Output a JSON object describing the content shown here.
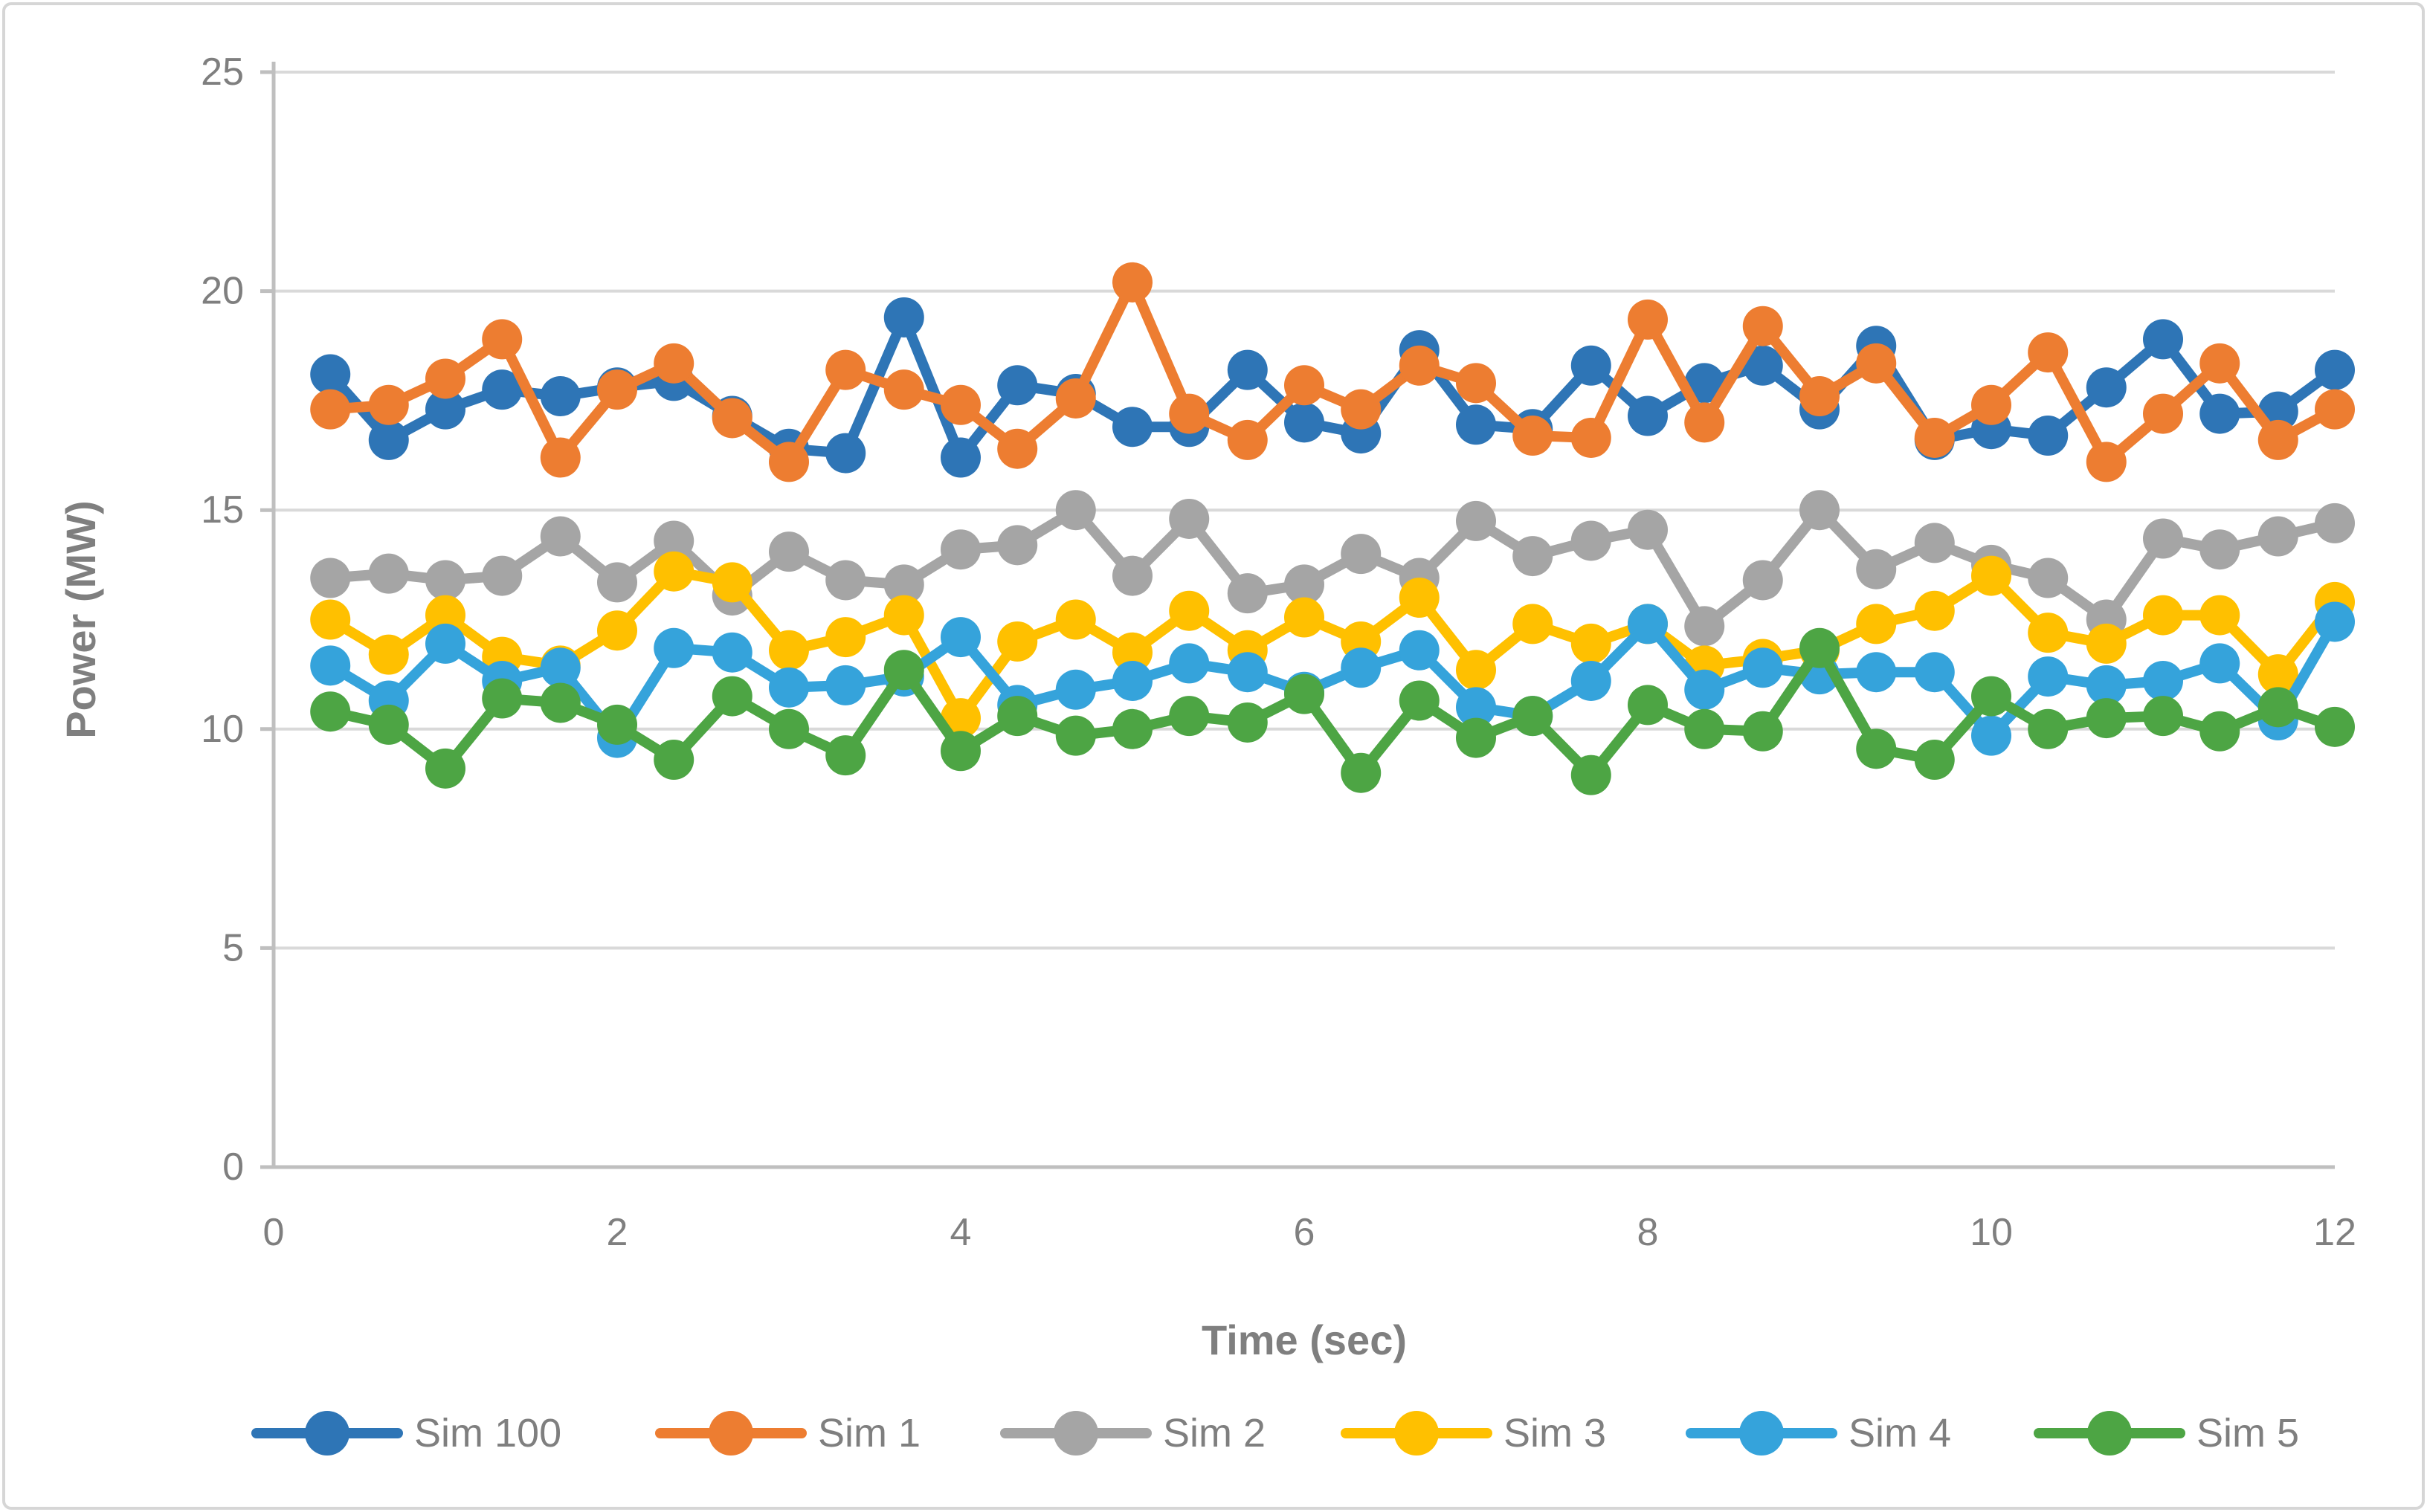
{
  "figure": {
    "border_color": "#d6d6d6",
    "background": "#ffffff",
    "text_color": "#7f7f7f",
    "grid_color": "#d9d9d9",
    "axis_color": "#bfbfbf"
  },
  "chart_data": {
    "type": "line",
    "title": "",
    "xlabel": "Time (sec)",
    "ylabel": "Power (MW)",
    "xlim": [
      0,
      12
    ],
    "ylim": [
      0,
      25
    ],
    "xticks": [
      0,
      2,
      4,
      6,
      8,
      10,
      12
    ],
    "yticks": [
      0,
      5,
      10,
      15,
      20,
      25
    ],
    "grid": "horizontal",
    "legend_position": "bottom",
    "marker": "circle",
    "x": [
      0.33,
      0.67,
      1,
      1.33,
      1.67,
      2,
      2.33,
      2.67,
      3,
      3.33,
      3.67,
      4,
      4.33,
      4.67,
      5,
      5.33,
      5.67,
      6,
      6.33,
      6.67,
      7,
      7.33,
      7.67,
      8,
      8.33,
      8.67,
      9,
      9.33,
      9.67,
      10,
      10.33,
      10.67,
      11,
      11.33,
      11.67,
      12
    ],
    "series": [
      {
        "name": "Sim 100",
        "color": "#2e75b6",
        "values": [
          18.1,
          16.6,
          17.3,
          17.75,
          17.6,
          17.8,
          17.95,
          17.15,
          16.4,
          16.3,
          19.4,
          16.2,
          17.85,
          17.65,
          16.9,
          16.9,
          18.2,
          17.0,
          16.75,
          18.65,
          16.95,
          16.85,
          18.3,
          17.15,
          17.9,
          18.3,
          17.3,
          18.75,
          16.6,
          16.85,
          16.7,
          17.8,
          18.9,
          17.2,
          17.25,
          18.2
        ]
      },
      {
        "name": "Sim 1",
        "color": "#ed7d31",
        "values": [
          17.3,
          17.4,
          18.0,
          18.9,
          16.2,
          17.75,
          18.35,
          17.1,
          16.1,
          18.2,
          17.75,
          17.4,
          16.4,
          17.55,
          20.2,
          17.2,
          16.6,
          17.85,
          17.3,
          18.3,
          17.9,
          16.7,
          16.65,
          19.35,
          17.0,
          19.2,
          17.6,
          18.35,
          16.65,
          17.4,
          18.6,
          16.1,
          17.2,
          18.35,
          16.6,
          17.3
        ]
      },
      {
        "name": "Sim 2",
        "color": "#a5a5a5",
        "values": [
          13.45,
          13.55,
          13.4,
          13.5,
          14.4,
          13.35,
          14.3,
          13.05,
          14.05,
          13.4,
          13.3,
          14.1,
          14.2,
          15.0,
          13.5,
          14.8,
          13.1,
          13.3,
          14.0,
          13.45,
          14.75,
          13.95,
          14.3,
          14.55,
          12.35,
          13.4,
          15.0,
          13.65,
          14.25,
          13.75,
          13.45,
          12.5,
          14.35,
          14.1,
          14.4,
          14.7
        ]
      },
      {
        "name": "Sim 3",
        "color": "#ffc000",
        "values": [
          12.5,
          11.7,
          12.6,
          11.65,
          11.45,
          12.25,
          13.6,
          13.35,
          11.8,
          12.1,
          12.6,
          10.25,
          12.0,
          12.5,
          11.75,
          12.7,
          11.8,
          12.55,
          12.0,
          13.0,
          11.35,
          12.4,
          11.95,
          12.4,
          11.45,
          11.6,
          11.8,
          12.4,
          12.7,
          13.5,
          12.2,
          11.95,
          12.6,
          12.6,
          11.25,
          12.9
        ]
      },
      {
        "name": "Sim 4",
        "color": "#35a3db",
        "values": [
          11.45,
          10.65,
          11.95,
          11.1,
          11.4,
          9.8,
          11.85,
          11.75,
          10.95,
          11.0,
          11.2,
          12.1,
          10.55,
          10.9,
          11.1,
          11.5,
          11.3,
          10.85,
          11.4,
          11.8,
          10.5,
          10.3,
          11.1,
          12.4,
          10.9,
          11.4,
          11.25,
          11.3,
          11.3,
          9.85,
          11.2,
          11.0,
          11.1,
          11.5,
          10.2,
          12.45
        ]
      },
      {
        "name": "Sim 5",
        "color": "#4da544",
        "values": [
          10.4,
          10.1,
          9.1,
          10.7,
          10.6,
          10.1,
          9.3,
          10.75,
          10.0,
          9.4,
          11.35,
          9.5,
          10.3,
          9.85,
          10.0,
          10.3,
          10.15,
          10.8,
          9.0,
          10.65,
          9.8,
          10.3,
          8.95,
          10.55,
          10.0,
          9.95,
          11.85,
          9.55,
          9.3,
          10.75,
          10.0,
          10.25,
          10.3,
          9.95,
          10.5,
          10.05
        ]
      }
    ]
  }
}
